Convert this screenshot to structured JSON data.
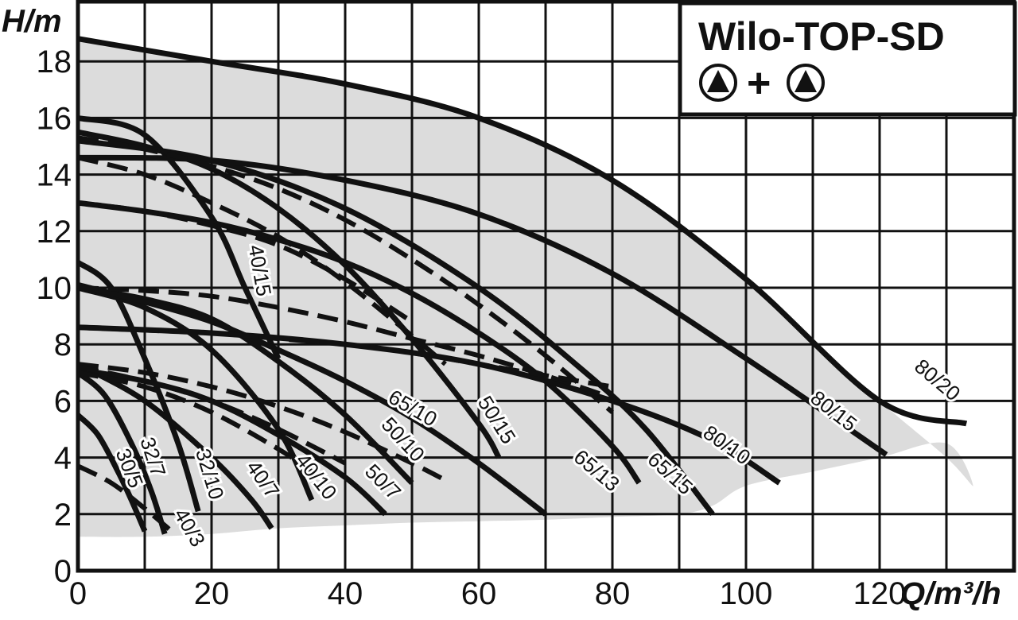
{
  "chart_data": {
    "type": "line",
    "title": "Wilo-TOP-SD",
    "xlabel": "Q/m³/h",
    "ylabel": "H/m",
    "xlim": [
      0,
      140
    ],
    "ylim": [
      0,
      19.5
    ],
    "x_ticks": [
      0,
      20,
      40,
      60,
      80,
      100,
      120
    ],
    "y_ticks": [
      0,
      2,
      4,
      6,
      8,
      10,
      12,
      14,
      16,
      18
    ],
    "grid": true,
    "colors": {
      "line": "#111111",
      "fill": "#dcdcdc",
      "grid": "#111111",
      "background": "#ffffff"
    },
    "legend": {
      "position": "top-right",
      "symbols": [
        "pump-icon",
        "pump-icon"
      ],
      "operator": "+"
    },
    "envelope": {
      "x": [
        0,
        5,
        10,
        20,
        30,
        40,
        50,
        60,
        70,
        80,
        90,
        100,
        110,
        120,
        130,
        134,
        130,
        120,
        110,
        100,
        95,
        90,
        80,
        70,
        60,
        50,
        40,
        30,
        20,
        10,
        0
      ],
      "y": [
        18.8,
        18.6,
        18.4,
        18.0,
        17.6,
        17.2,
        16.7,
        16.0,
        15.0,
        13.8,
        12.2,
        10.3,
        8.2,
        6.0,
        4.0,
        3.0,
        4.5,
        4.0,
        3.5,
        3.0,
        2.3,
        2.0,
        1.9,
        1.8,
        1.75,
        1.7,
        1.6,
        1.5,
        1.3,
        1.2,
        1.2
      ]
    },
    "series": [
      {
        "name": "30/5",
        "style": "solid",
        "x": [
          0,
          3,
          6,
          8,
          10
        ],
        "y": [
          5.5,
          4.8,
          3.5,
          2.5,
          1.4
        ],
        "label_at": [
          7.5,
          3.6
        ],
        "angle": 68
      },
      {
        "name": "32/7",
        "style": "solid",
        "x": [
          0,
          4,
          8,
          11,
          13
        ],
        "y": [
          7.0,
          6.2,
          4.5,
          2.8,
          1.3
        ],
        "label_at": [
          11.0,
          4.0
        ],
        "angle": 72
      },
      {
        "name": "32/10",
        "style": "solid",
        "x": [
          0,
          5,
          10,
          15,
          18
        ],
        "y": [
          10.9,
          10.0,
          7.5,
          4.5,
          2.1
        ],
        "label_at": [
          19.5,
          3.4
        ],
        "angle": 73
      },
      {
        "name": "40/3",
        "style": "dashed",
        "x": [
          0,
          5,
          10,
          14
        ],
        "y": [
          3.7,
          3.1,
          2.2,
          1.4
        ],
        "label_at": [
          16.5,
          1.5
        ],
        "angle": 60
      },
      {
        "name": "40/7",
        "style": "solid",
        "x": [
          0,
          10,
          20,
          26,
          29
        ],
        "y": [
          7.3,
          6.0,
          4.0,
          2.5,
          1.5
        ],
        "label_at": [
          27.5,
          3.2
        ],
        "angle": 55
      },
      {
        "name": "40/10",
        "style": "solid",
        "x": [
          0,
          10,
          20,
          30,
          35
        ],
        "y": [
          10.0,
          9.3,
          7.8,
          5.0,
          2.5
        ],
        "label_at": [
          35.5,
          3.3
        ],
        "angle": 52
      },
      {
        "name": "40/15",
        "style": "solid",
        "x": [
          0,
          10,
          20,
          25,
          30
        ],
        "y": [
          16.0,
          15.4,
          12.5,
          10.0,
          7.5
        ],
        "label_at": [
          27.0,
          10.6
        ],
        "angle": 80
      },
      {
        "name": "50/7",
        "style": "solid",
        "x": [
          0,
          10,
          20,
          30,
          40,
          46
        ],
        "y": [
          7.1,
          6.7,
          6.0,
          4.8,
          3.3,
          2.0
        ],
        "label_at": [
          45.5,
          3.1
        ],
        "angle": 45
      },
      {
        "name": "50/10",
        "style": "solid",
        "x": [
          0,
          10,
          20,
          30,
          40,
          50
        ],
        "y": [
          10.0,
          9.6,
          8.9,
          7.4,
          5.5,
          3.1
        ],
        "label_at": [
          48.5,
          4.6
        ],
        "angle": 47
      },
      {
        "name": "50/15",
        "style": "solid",
        "x": [
          0,
          10,
          20,
          30,
          40,
          50,
          60,
          63
        ],
        "y": [
          15.5,
          15.0,
          14.2,
          12.8,
          10.8,
          8.2,
          5.2,
          4.0
        ],
        "label_at": [
          62.5,
          5.3
        ],
        "angle": 58
      },
      {
        "name": "65/10",
        "style": "solid",
        "x": [
          0,
          10,
          20,
          30,
          40,
          50,
          60,
          70
        ],
        "y": [
          10.1,
          9.5,
          8.8,
          7.8,
          6.7,
          5.4,
          3.8,
          2.0
        ],
        "label_at": [
          50.0,
          5.7
        ],
        "angle": 30
      },
      {
        "name": "65/13",
        "style": "solid",
        "x": [
          0,
          10,
          20,
          30,
          40,
          50,
          60,
          70,
          80,
          84
        ],
        "y": [
          13.0,
          12.7,
          12.3,
          11.7,
          10.9,
          9.8,
          8.4,
          6.7,
          4.4,
          3.1
        ],
        "label_at": [
          77.5,
          3.5
        ],
        "angle": 40
      },
      {
        "name": "65/15",
        "style": "solid",
        "x": [
          0,
          20,
          40,
          60,
          75,
          85,
          95
        ],
        "y": [
          15.2,
          14.5,
          12.8,
          10.0,
          7.2,
          5.0,
          2.0
        ],
        "label_at": [
          88.5,
          3.4
        ],
        "angle": 42
      },
      {
        "name": "80/10",
        "style": "solid",
        "x": [
          0,
          20,
          40,
          60,
          80,
          95,
          105
        ],
        "y": [
          8.6,
          8.4,
          8.0,
          7.3,
          6.0,
          4.6,
          3.1
        ],
        "label_at": [
          97.0,
          4.4
        ],
        "angle": 35
      },
      {
        "name": "80/15",
        "style": "solid",
        "x": [
          0,
          20,
          40,
          60,
          80,
          100,
          121
        ],
        "y": [
          14.6,
          14.5,
          13.8,
          12.6,
          10.5,
          7.5,
          4.1
        ],
        "label_at": [
          113.0,
          5.6
        ],
        "angle": 38
      },
      {
        "name": "80/20",
        "style": "solid",
        "x": [
          0,
          20,
          40,
          60,
          80,
          100,
          120,
          133
        ],
        "y": [
          18.8,
          18.0,
          17.2,
          16.0,
          13.8,
          10.3,
          6.0,
          5.2
        ],
        "label_at": [
          128.5,
          6.7
        ],
        "angle": 40
      },
      {
        "name": "",
        "style": "dashed",
        "x": [
          0,
          10,
          20,
          30,
          40,
          50,
          60,
          70,
          80
        ],
        "y": [
          15.3,
          14.9,
          14.3,
          13.5,
          12.4,
          11.0,
          9.4,
          7.6,
          5.6
        ]
      },
      {
        "name": "",
        "style": "dashed",
        "x": [
          0,
          10,
          20,
          30,
          40,
          50,
          55
        ],
        "y": [
          14.6,
          14.0,
          13.0,
          11.8,
          10.2,
          8.3,
          7.3
        ]
      },
      {
        "name": "",
        "style": "dashed",
        "x": [
          0,
          10,
          20,
          30,
          40,
          50
        ],
        "y": [
          13.0,
          12.7,
          12.2,
          11.5,
          10.3,
          8.8
        ]
      },
      {
        "name": "",
        "style": "dashed",
        "x": [
          0,
          10,
          20,
          30,
          40,
          50,
          60,
          70,
          80
        ],
        "y": [
          10.0,
          9.9,
          9.7,
          9.3,
          8.8,
          8.2,
          7.6,
          6.9,
          6.1
        ]
      },
      {
        "name": "",
        "style": "dashed",
        "x": [
          0,
          10,
          20,
          30,
          40,
          50,
          60,
          70,
          80
        ],
        "y": [
          8.6,
          8.5,
          8.4,
          8.2,
          8.0,
          7.7,
          7.3,
          6.9,
          6.5
        ]
      },
      {
        "name": "",
        "style": "dashed",
        "x": [
          0,
          10,
          20,
          30,
          40,
          50,
          55
        ],
        "y": [
          7.3,
          7.0,
          6.5,
          5.8,
          4.9,
          3.8,
          3.2
        ]
      },
      {
        "name": "",
        "style": "dashed",
        "x": [
          0,
          10,
          20,
          30,
          35
        ],
        "y": [
          7.0,
          6.5,
          5.6,
          4.3,
          3.5
        ]
      },
      {
        "name": "",
        "style": "dashed",
        "x": [
          0,
          10,
          20,
          30,
          40
        ],
        "y": [
          7.2,
          6.7,
          6.0,
          5.0,
          3.8
        ]
      }
    ]
  }
}
